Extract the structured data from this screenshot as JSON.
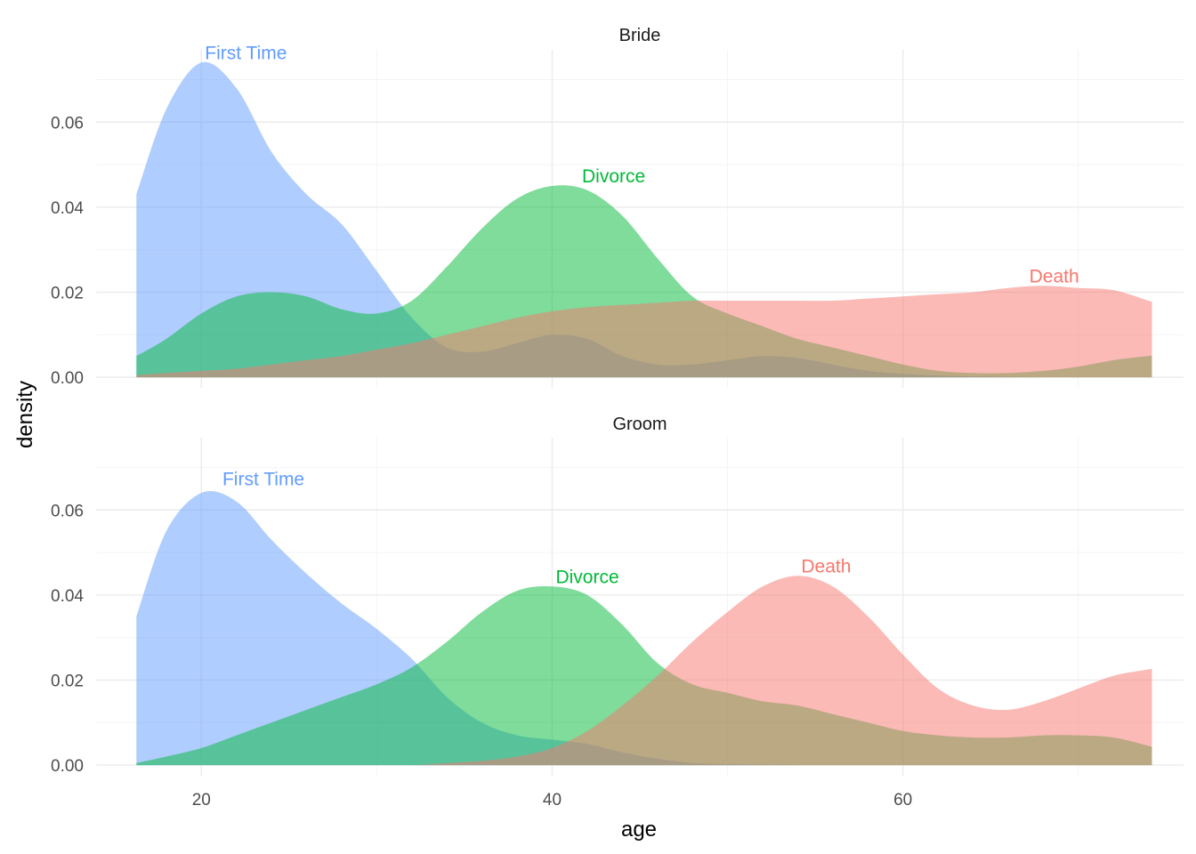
{
  "chart_data": {
    "type": "area",
    "subtype": "density",
    "xlabel": "age",
    "ylabel": "density",
    "xlim": [
      14,
      76
    ],
    "ylim": [
      -0.0025,
      0.077
    ],
    "x_ticks": [
      20,
      40,
      60
    ],
    "x_tick_labels": [
      "20",
      "40",
      "60"
    ],
    "y_ticks": [
      0,
      0.02,
      0.04,
      0.06
    ],
    "y_tick_labels": [
      "0.00",
      "0.02",
      "0.04",
      "0.06"
    ],
    "grid": true,
    "legend": "none (direct labels on curves)",
    "fill_opacity": 0.5,
    "series_colors": {
      "First Time": "#619CFF",
      "Divorce": "#00BA38",
      "Death": "#F8766D"
    },
    "panels": [
      {
        "title": "Bride",
        "series": [
          {
            "name": "First Time",
            "x": [
              16.3,
              18,
              20,
              22,
              24,
              26,
              28,
              30,
              32,
              34,
              36,
              38,
              40,
              42,
              44,
              46,
              48,
              50,
              52,
              54,
              56,
              58,
              60,
              62,
              64,
              66,
              68,
              70,
              72,
              74,
              74.2
            ],
            "y": [
              0.043,
              0.063,
              0.074,
              0.068,
              0.053,
              0.043,
              0.036,
              0.025,
              0.014,
              0.007,
              0.006,
              0.008,
              0.01,
              0.009,
              0.005,
              0.003,
              0.003,
              0.004,
              0.005,
              0.0045,
              0.003,
              0.0015,
              0.0008,
              0.0004,
              0.0002,
              0.0001,
              0.0,
              0.0,
              0.0,
              0.0,
              0.0
            ],
            "label": "First Time",
            "label_at": [
              20,
              0.074
            ]
          },
          {
            "name": "Divorce",
            "x": [
              16.3,
              18,
              20,
              22,
              24,
              26,
              28,
              30,
              32,
              34,
              36,
              38,
              40,
              42,
              44,
              46,
              48,
              50,
              52,
              54,
              56,
              58,
              60,
              62,
              64,
              66,
              68,
              70,
              72,
              74,
              74.2
            ],
            "y": [
              0.005,
              0.009,
              0.015,
              0.019,
              0.02,
              0.019,
              0.016,
              0.015,
              0.018,
              0.026,
              0.035,
              0.042,
              0.045,
              0.044,
              0.038,
              0.028,
              0.019,
              0.015,
              0.012,
              0.009,
              0.007,
              0.005,
              0.003,
              0.0015,
              0.001,
              0.001,
              0.0015,
              0.0025,
              0.004,
              0.005,
              0.005
            ],
            "label": "Divorce",
            "label_at": [
              41.5,
              0.045
            ]
          },
          {
            "name": "Death",
            "x": [
              16.3,
              18,
              20,
              22,
              24,
              26,
              28,
              30,
              32,
              34,
              36,
              38,
              40,
              42,
              44,
              46,
              48,
              50,
              52,
              54,
              56,
              58,
              60,
              62,
              64,
              66,
              68,
              70,
              72,
              74,
              74.2
            ],
            "y": [
              0.0005,
              0.001,
              0.0015,
              0.002,
              0.003,
              0.004,
              0.005,
              0.0065,
              0.008,
              0.01,
              0.012,
              0.014,
              0.0155,
              0.0165,
              0.017,
              0.0175,
              0.018,
              0.018,
              0.018,
              0.018,
              0.018,
              0.0185,
              0.019,
              0.0195,
              0.02,
              0.021,
              0.0215,
              0.021,
              0.0205,
              0.018,
              0.0178
            ],
            "label": "Death",
            "label_at": [
              67,
              0.0215
            ]
          }
        ]
      },
      {
        "title": "Groom",
        "series": [
          {
            "name": "First Time",
            "x": [
              16.3,
              18,
              20,
              22,
              24,
              26,
              28,
              30,
              32,
              34,
              36,
              38,
              40,
              42,
              44,
              46,
              48,
              50,
              52,
              54,
              56,
              58,
              60,
              62,
              64,
              66,
              68,
              70,
              72,
              74,
              74.2
            ],
            "y": [
              0.035,
              0.055,
              0.064,
              0.062,
              0.053,
              0.045,
              0.038,
              0.032,
              0.025,
              0.016,
              0.01,
              0.007,
              0.006,
              0.005,
              0.003,
              0.0015,
              0.0005,
              0.0002,
              0.0001,
              0.0,
              0.0,
              0.0,
              0.0,
              0.0,
              0.0,
              0.0,
              0.0,
              0.0,
              0.0,
              0.0,
              0.0
            ],
            "label": "First Time",
            "label_at": [
              21,
              0.065
            ]
          },
          {
            "name": "Divorce",
            "x": [
              16.3,
              18,
              20,
              22,
              24,
              26,
              28,
              30,
              32,
              34,
              36,
              38,
              40,
              42,
              44,
              46,
              48,
              50,
              52,
              54,
              56,
              58,
              60,
              62,
              64,
              66,
              68,
              70,
              72,
              74,
              74.2
            ],
            "y": [
              0.0005,
              0.002,
              0.004,
              0.007,
              0.01,
              0.013,
              0.016,
              0.019,
              0.023,
              0.029,
              0.036,
              0.041,
              0.042,
              0.04,
              0.033,
              0.024,
              0.019,
              0.017,
              0.015,
              0.014,
              0.012,
              0.01,
              0.008,
              0.007,
              0.0065,
              0.0065,
              0.007,
              0.007,
              0.0065,
              0.0045,
              0.004
            ],
            "label": "Divorce",
            "label_at": [
              40,
              0.042
            ]
          },
          {
            "name": "Death",
            "x": [
              16.3,
              18,
              20,
              22,
              24,
              26,
              28,
              30,
              32,
              34,
              36,
              38,
              40,
              42,
              44,
              46,
              48,
              50,
              52,
              54,
              56,
              58,
              60,
              62,
              64,
              66,
              68,
              70,
              72,
              74,
              74.2
            ],
            "y": [
              0.0,
              0.0,
              0.0,
              0.0,
              0.0,
              0.0,
              0.0,
              0.0,
              0.0,
              0.0005,
              0.001,
              0.002,
              0.004,
              0.008,
              0.014,
              0.021,
              0.029,
              0.036,
              0.042,
              0.0445,
              0.042,
              0.035,
              0.026,
              0.018,
              0.014,
              0.013,
              0.015,
              0.018,
              0.021,
              0.0225,
              0.0225
            ],
            "label": "Death",
            "label_at": [
              54,
              0.0445
            ]
          }
        ]
      }
    ]
  }
}
